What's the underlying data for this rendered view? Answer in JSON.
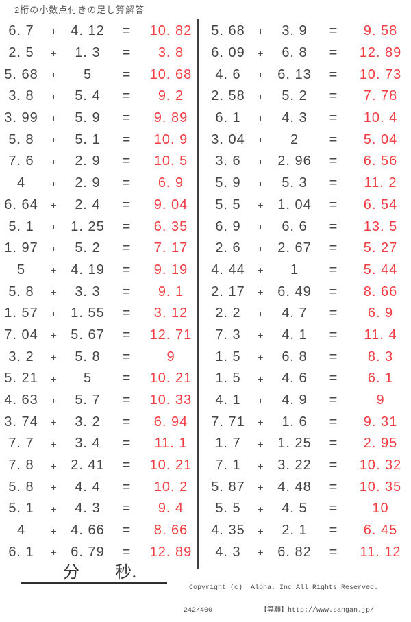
{
  "title": "2桁の小数点付きの足し算解答",
  "symbols": {
    "plus": "+",
    "equals": "="
  },
  "colors": {
    "answer_red": "#f23d43",
    "text": "#454545"
  },
  "problems": {
    "left": [
      {
        "a": "6. 7",
        "b": "4. 12",
        "answer": "10. 82"
      },
      {
        "a": "2. 5",
        "b": "1. 3",
        "answer": "3. 8"
      },
      {
        "a": "5. 68",
        "b": "5",
        "answer": "10. 68"
      },
      {
        "a": "3. 8",
        "b": "5. 4",
        "answer": "9. 2"
      },
      {
        "a": "3. 99",
        "b": "5. 9",
        "answer": "9. 89"
      },
      {
        "a": "5. 8",
        "b": "5. 1",
        "answer": "10. 9"
      },
      {
        "a": "7. 6",
        "b": "2. 9",
        "answer": "10. 5"
      },
      {
        "a": "4",
        "b": "2. 9",
        "answer": "6. 9"
      },
      {
        "a": "6. 64",
        "b": "2. 4",
        "answer": "9. 04"
      },
      {
        "a": "5. 1",
        "b": "1. 25",
        "answer": "6. 35"
      },
      {
        "a": "1. 97",
        "b": "5. 2",
        "answer": "7. 17"
      },
      {
        "a": "5",
        "b": "4. 19",
        "answer": "9. 19"
      },
      {
        "a": "5. 8",
        "b": "3. 3",
        "answer": "9. 1"
      },
      {
        "a": "1. 57",
        "b": "1. 55",
        "answer": "3. 12"
      },
      {
        "a": "7. 04",
        "b": "5. 67",
        "answer": "12. 71"
      },
      {
        "a": "3. 2",
        "b": "5. 8",
        "answer": "9"
      },
      {
        "a": "5. 21",
        "b": "5",
        "answer": "10. 21"
      },
      {
        "a": "4. 63",
        "b": "5. 7",
        "answer": "10. 33"
      },
      {
        "a": "3. 74",
        "b": "3. 2",
        "answer": "6. 94"
      },
      {
        "a": "7. 7",
        "b": "3. 4",
        "answer": "11. 1"
      },
      {
        "a": "7. 8",
        "b": "2. 41",
        "answer": "10. 21"
      },
      {
        "a": "5. 8",
        "b": "4. 4",
        "answer": "10. 2"
      },
      {
        "a": "5. 1",
        "b": "4. 3",
        "answer": "9. 4"
      },
      {
        "a": "4",
        "b": "4. 66",
        "answer": "8. 66"
      },
      {
        "a": "6. 1",
        "b": "6. 79",
        "answer": "12. 89"
      }
    ],
    "right": [
      {
        "a": "5. 68",
        "b": "3. 9",
        "answer": "9. 58"
      },
      {
        "a": "6. 09",
        "b": "6. 8",
        "answer": "12. 89"
      },
      {
        "a": "4. 6",
        "b": "6. 13",
        "answer": "10. 73"
      },
      {
        "a": "2. 58",
        "b": "5. 2",
        "answer": "7. 78"
      },
      {
        "a": "6. 1",
        "b": "4. 3",
        "answer": "10. 4"
      },
      {
        "a": "3. 04",
        "b": "2",
        "answer": "5. 04"
      },
      {
        "a": "3. 6",
        "b": "2. 96",
        "answer": "6. 56"
      },
      {
        "a": "5. 9",
        "b": "5. 3",
        "answer": "11. 2"
      },
      {
        "a": "5. 5",
        "b": "1. 04",
        "answer": "6. 54"
      },
      {
        "a": "6. 9",
        "b": "6. 6",
        "answer": "13. 5"
      },
      {
        "a": "2. 6",
        "b": "2. 67",
        "answer": "5. 27"
      },
      {
        "a": "4. 44",
        "b": "1",
        "answer": "5. 44"
      },
      {
        "a": "2. 17",
        "b": "6. 49",
        "answer": "8. 66"
      },
      {
        "a": "2. 2",
        "b": "4. 7",
        "answer": "6. 9"
      },
      {
        "a": "7. 3",
        "b": "4. 1",
        "answer": "11. 4"
      },
      {
        "a": "1. 5",
        "b": "6. 8",
        "answer": "8. 3"
      },
      {
        "a": "1. 5",
        "b": "4. 6",
        "answer": "6. 1"
      },
      {
        "a": "4. 1",
        "b": "4. 9",
        "answer": "9"
      },
      {
        "a": "7. 71",
        "b": "1. 6",
        "answer": "9. 31"
      },
      {
        "a": "1. 7",
        "b": "1. 25",
        "answer": "2. 95"
      },
      {
        "a": "7. 1",
        "b": "3. 22",
        "answer": "10. 32"
      },
      {
        "a": "5. 87",
        "b": "4. 48",
        "answer": "10. 35"
      },
      {
        "a": "5. 5",
        "b": "4. 5",
        "answer": "10"
      },
      {
        "a": "4. 35",
        "b": "2. 1",
        "answer": "6. 45"
      },
      {
        "a": "4. 3",
        "b": "6. 82",
        "answer": "11. 12"
      }
    ]
  },
  "footer": {
    "minutes_label": "分",
    "seconds_label": "秒.",
    "page": "242/400",
    "copyright_line1": "Copyright (c)  Alpha. Inc All Rights Reserved.",
    "copyright_line2": "【算願】http://www.sangan.jp/"
  }
}
